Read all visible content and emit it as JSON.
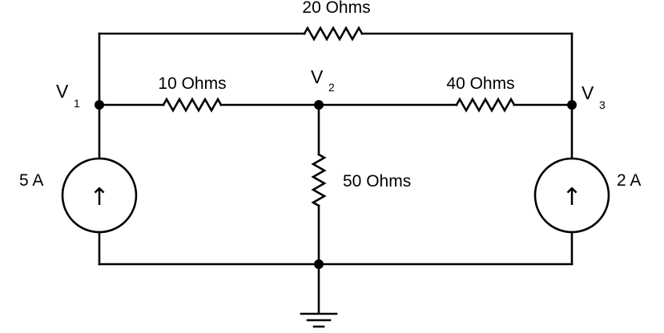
{
  "labels": {
    "r_top": "20 Ohms",
    "r_left": "10 Ohms",
    "r_right": "40 Ohms",
    "r_middle": "50 Ohms",
    "src_left": "5 A",
    "src_right": "2 A"
  },
  "nodes": {
    "v1": {
      "base": "V",
      "sub": "1"
    },
    "v2": {
      "base": "V",
      "sub": "2"
    },
    "v3": {
      "base": "V",
      "sub": "3"
    }
  },
  "icons": {
    "arrow": "↑",
    "names": [
      "resistor-icon",
      "current-source-icon",
      "ground-icon",
      "junction-dot-icon",
      "up-arrow-icon"
    ]
  },
  "colors": {
    "line": "#000000",
    "background": "#ffffff"
  }
}
